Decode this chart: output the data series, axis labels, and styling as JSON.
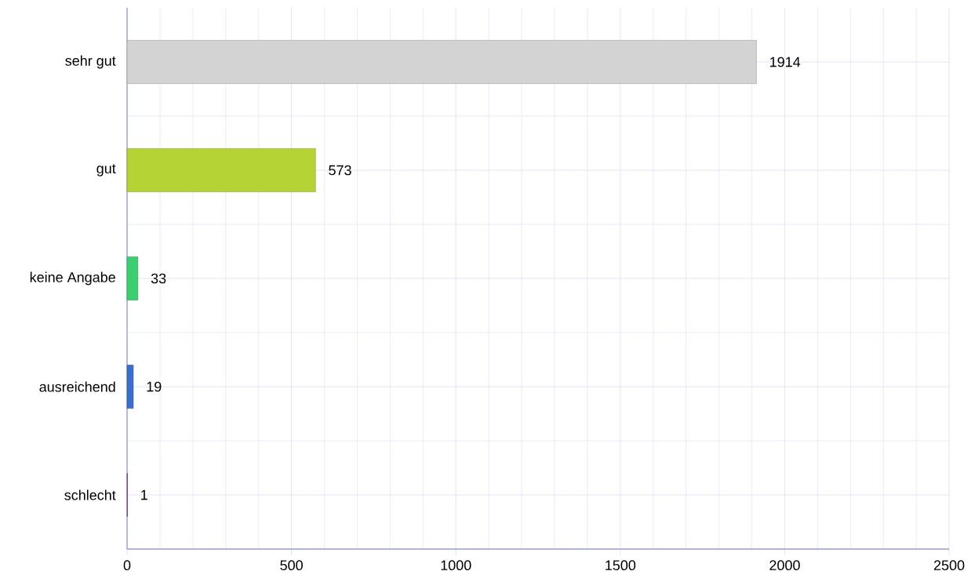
{
  "chart_data": {
    "type": "bar",
    "orientation": "horizontal",
    "categories": [
      "sehr gut",
      "gut",
      "keine Angabe",
      "ausreichend",
      "schlecht"
    ],
    "values": [
      1914,
      573,
      33,
      19,
      1
    ],
    "colors": [
      "#d3d3d3",
      "#b5d334",
      "#3ccf70",
      "#3a6fd0",
      "#9b2fae"
    ],
    "xlim": [
      0,
      2500
    ],
    "xticks": [
      0,
      500,
      1000,
      1500,
      2000,
      2500
    ],
    "grid": true,
    "data_labels": true
  }
}
